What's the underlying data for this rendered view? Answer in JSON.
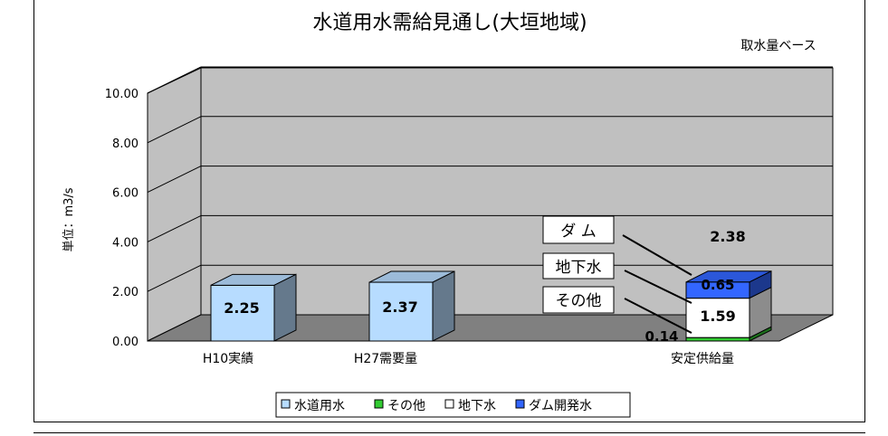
{
  "chart_data": {
    "type": "bar",
    "title": "水道用水需給見通し(大垣地域)",
    "subtitle": "取水量ベース",
    "ylabel": "単位：m3/s",
    "ylim": [
      0,
      10
    ],
    "yticks": [
      "0.00",
      "2.00",
      "4.00",
      "6.00",
      "8.00",
      "10.00"
    ],
    "categories": [
      "H10実績",
      "H27需要量",
      "安定供給量"
    ],
    "series": [
      {
        "name": "水道用水",
        "color": "#b7dcff",
        "values": [
          2.25,
          2.37,
          null
        ]
      },
      {
        "name": "その他",
        "color": "#33cc33",
        "values": [
          null,
          null,
          0.14
        ]
      },
      {
        "name": "地下水",
        "color": "#ffffff",
        "values": [
          null,
          null,
          1.59
        ]
      },
      {
        "name": "ダム開発水",
        "color": "#3366ff",
        "values": [
          null,
          null,
          0.65
        ]
      }
    ],
    "bar_labels": [
      "2.25",
      "2.37",
      "0.14",
      "1.59",
      "0.65"
    ],
    "total_label": "2.38",
    "callouts": [
      "ダ ム",
      "地下水",
      "その他"
    ],
    "grid": true,
    "legend_position": "bottom"
  }
}
